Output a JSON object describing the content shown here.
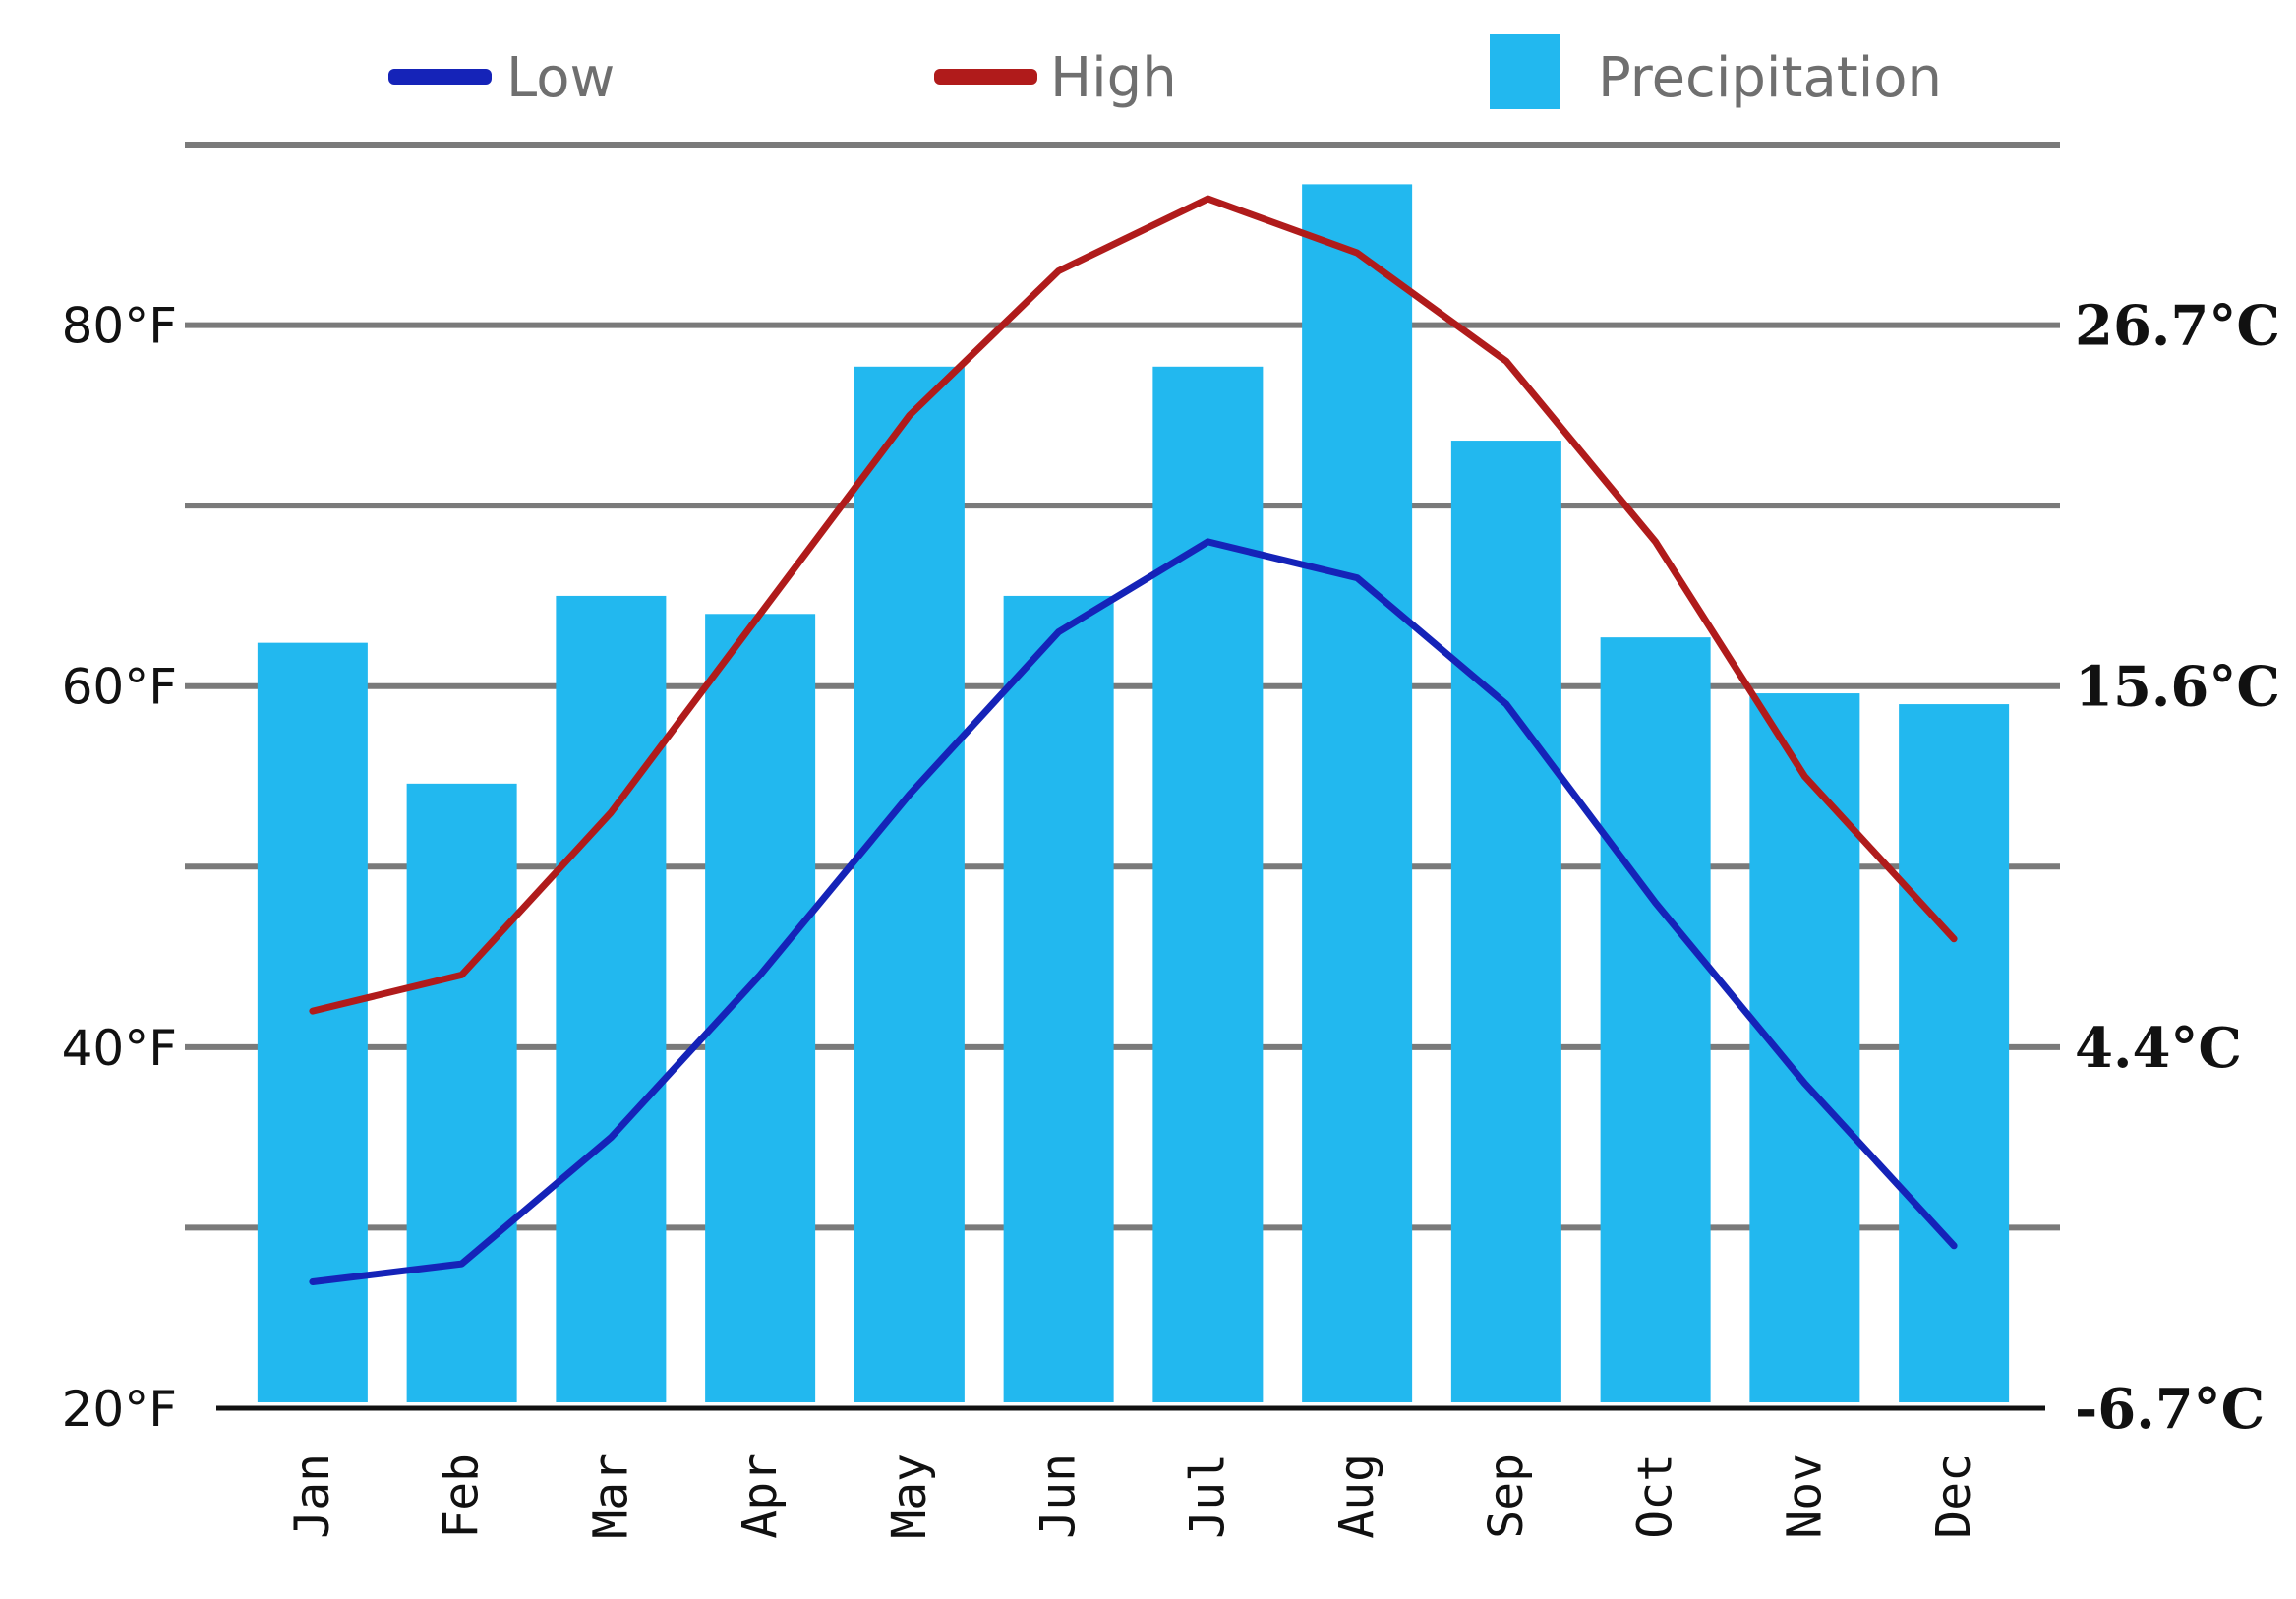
{
  "chart_data": {
    "type": "bar",
    "categories": [
      "Jan",
      "Feb",
      "Mar",
      "Apr",
      "May",
      "Jun",
      "Jul",
      "Aug",
      "Sep",
      "Oct",
      "Nov",
      "Dec"
    ],
    "legend": {
      "placement": "top",
      "entries": [
        {
          "label": "Low",
          "color": "#1523b8",
          "kind": "line"
        },
        {
          "label": "High",
          "color": "#b01b1b",
          "kind": "line"
        },
        {
          "label": "Precipitation",
          "color": "#22b8ef",
          "kind": "bar"
        }
      ]
    },
    "y_left": {
      "range": [
        20,
        90
      ],
      "ticks": [
        20,
        40,
        60,
        80
      ],
      "tick_labels": [
        "20°F",
        "40°F",
        "60°F",
        "80°F"
      ],
      "gridlines": [
        30,
        40,
        50,
        60,
        70,
        80,
        90
      ]
    },
    "y_right": {
      "tick_values_f": [
        20,
        40,
        60,
        80
      ],
      "tick_labels": [
        "-6.7°C",
        "4.4°C",
        "15.6°C",
        "26.7°C"
      ]
    },
    "series": [
      {
        "name": "Low",
        "type": "line",
        "color": "#1523b8",
        "values": [
          27,
          28,
          35,
          44,
          54,
          63,
          68,
          66,
          59,
          48,
          38,
          29
        ]
      },
      {
        "name": "High",
        "type": "line",
        "color": "#b01b1b",
        "values": [
          42,
          44,
          53,
          64,
          75,
          83,
          87,
          84,
          78,
          68,
          55,
          46
        ]
      },
      {
        "name": "Precipitation",
        "type": "bar",
        "color": "#22b8ef",
        "values": [
          62.4,
          54.6,
          65,
          64,
          77.7,
          65,
          77.7,
          87.8,
          73.6,
          62.7,
          59.6,
          59
        ]
      }
    ],
    "grid": true
  }
}
